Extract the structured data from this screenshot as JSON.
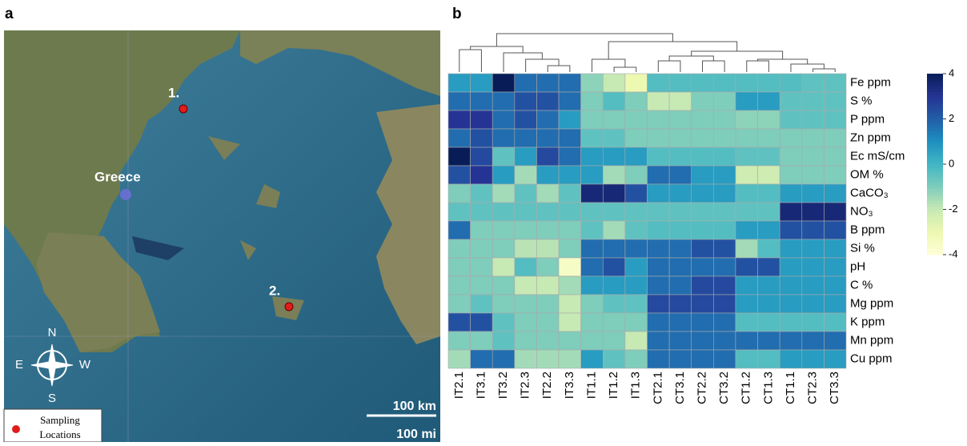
{
  "map": {
    "label": "a",
    "place": "Greece",
    "points": [
      "1.",
      "2."
    ],
    "compass": {
      "north": "N",
      "east": "E",
      "west": "W",
      "south": "S"
    },
    "scale_km": "100 km",
    "scale_mi": "100 mi",
    "legend": [
      "Sampling",
      "Locations"
    ]
  },
  "chart_data": {
    "type": "heatmap",
    "label": "b",
    "x": [
      "IT2.1",
      "IT3.1",
      "IT3.2",
      "IT2.3",
      "IT2.2",
      "IT3.3",
      "IT1.1",
      "IT1.2",
      "IT1.3",
      "CT2.1",
      "CT3.1",
      "CT2.2",
      "CT3.2",
      "CT1.2",
      "CT1.3",
      "CT1.1",
      "CT2.3",
      "CT3.3"
    ],
    "categories": [
      "Fe ppm",
      "S %",
      "P ppm",
      "Zn ppm",
      "Ec mS/cm",
      "OM %",
      "CaCO₃",
      "NO₃",
      "B ppm",
      "Si %",
      "pH",
      "C %",
      "Mg ppm",
      "K ppm",
      "Mn ppm",
      "Cu ppm"
    ],
    "values": [
      [
        0.7,
        0.7,
        4,
        1.7,
        1.7,
        1.7,
        -1.2,
        -2,
        -3,
        -0.3,
        -0.3,
        -0.3,
        -0.3,
        -0.3,
        -0.3,
        -0.3,
        -0.5,
        -0.5
      ],
      [
        1.7,
        1.7,
        1.7,
        2.3,
        2.3,
        1.7,
        -1,
        -0.3,
        -1,
        -2,
        -2,
        -1,
        -1,
        0.7,
        0.7,
        -0.5,
        -0.5,
        -0.5
      ],
      [
        3,
        3,
        1.7,
        2.3,
        1.7,
        0.7,
        -1,
        -1,
        -1,
        -1,
        -1,
        -1,
        -1,
        -1.2,
        -1.2,
        -0.5,
        -0.5,
        -0.5
      ],
      [
        1.7,
        2.3,
        1.7,
        1.7,
        1.7,
        1.7,
        -0.5,
        -0.5,
        -1,
        -1,
        -1,
        -1,
        -1,
        -1,
        -1,
        -1,
        -1,
        -1
      ],
      [
        4,
        2.5,
        -0.5,
        0.7,
        2.5,
        1.7,
        0.7,
        0.7,
        0.7,
        -0.3,
        -0.3,
        -0.3,
        -0.3,
        -0.5,
        -0.5,
        -1,
        -1,
        -1
      ],
      [
        2.3,
        3,
        0.7,
        -1.5,
        0.7,
        0.7,
        0.7,
        -1.5,
        -1,
        1.7,
        1.7,
        0.7,
        0.7,
        -2.2,
        -2.2,
        -1,
        -1,
        -1
      ],
      [
        -1,
        -0.5,
        -1.5,
        -0.5,
        -1.5,
        -0.5,
        3.5,
        3.5,
        2.3,
        0.7,
        0.7,
        0.7,
        0.7,
        -0.3,
        -0.3,
        0.7,
        0.7,
        0.7
      ],
      [
        -0.5,
        -0.5,
        -0.5,
        -0.5,
        -0.5,
        -0.5,
        -0.5,
        -0.5,
        -0.5,
        -0.5,
        -0.5,
        -0.5,
        -0.5,
        -0.5,
        -0.5,
        3.5,
        3.5,
        3.5
      ],
      [
        1.7,
        -1,
        -1,
        -1,
        -1,
        -1,
        -0.5,
        -1.5,
        -0.5,
        -0.3,
        -0.3,
        -0.3,
        -0.3,
        0.7,
        0.7,
        2.3,
        2.3,
        2.3
      ],
      [
        -1,
        -1,
        -1,
        -1.8,
        -1.8,
        -1,
        1.7,
        1.7,
        1.7,
        1.7,
        1.7,
        2.3,
        2.3,
        -1.5,
        -0.3,
        0.7,
        0.7,
        0.7
      ],
      [
        -1,
        -1,
        -2,
        -0.3,
        -1,
        -3.5,
        1.7,
        2.3,
        0.7,
        1.7,
        1.7,
        1.7,
        1.7,
        2.3,
        2.3,
        0.7,
        0.7,
        0.7
      ],
      [
        -1,
        -1,
        -1,
        -2,
        -2,
        -1.5,
        0.7,
        0.7,
        0.7,
        1.7,
        1.7,
        2.5,
        2.5,
        0.7,
        0.7,
        0.7,
        0.7,
        0.7
      ],
      [
        -1,
        -0.5,
        -1,
        -1,
        -1,
        -2,
        -1,
        -0.5,
        -0.5,
        2.5,
        2.5,
        2.5,
        2.5,
        0.7,
        0.7,
        0.7,
        0.7,
        0.7
      ],
      [
        2.3,
        2.3,
        -0.5,
        -1,
        -1,
        -2,
        -1,
        -1,
        -1,
        1.7,
        1.7,
        1.7,
        1.7,
        -0.3,
        -0.3,
        -0.3,
        -0.3,
        -0.3
      ],
      [
        -1,
        -1,
        -0.5,
        -1,
        -1,
        -1,
        -1,
        -1,
        -2,
        1.7,
        1.7,
        1.7,
        1.7,
        1.7,
        1.7,
        1.7,
        1.7,
        1.7
      ],
      [
        -1.5,
        1.7,
        1.7,
        -1.5,
        -1.5,
        -1.5,
        0.7,
        -0.5,
        -1,
        1.7,
        1.7,
        1.7,
        1.7,
        -0.3,
        -0.3,
        0.7,
        0.7,
        0.7
      ]
    ],
    "colorscale": [
      "#ffffd9",
      "#edf8b1",
      "#c7e9b4",
      "#7fcdbb",
      "#41b6c4",
      "#1d91c0",
      "#225ea8",
      "#253494",
      "#081d58"
    ],
    "zlim": [
      -4,
      4
    ],
    "zticks": [
      4,
      2,
      0,
      -2,
      -4
    ]
  }
}
